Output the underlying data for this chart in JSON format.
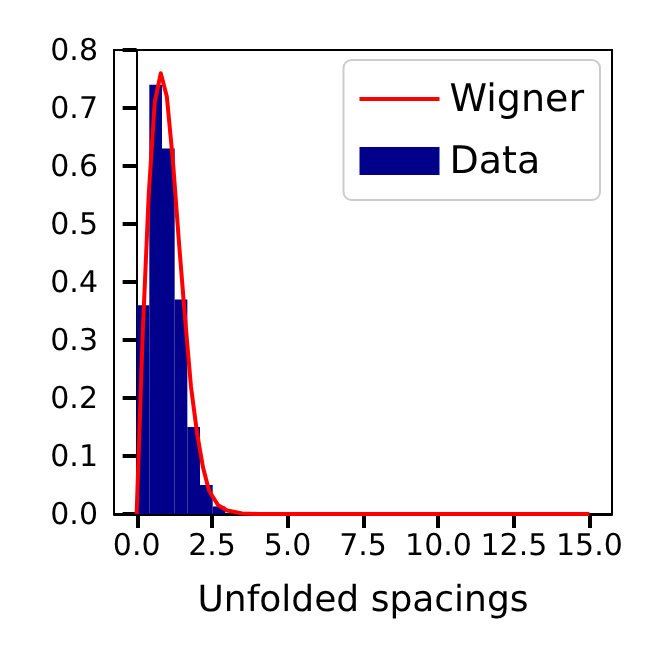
{
  "chart_data": {
    "type": "histogram",
    "xlabel": "Unfolded spacings",
    "xlim": [
      -0.75,
      15.75
    ],
    "xticks": [
      {
        "value": 0,
        "label": "0.0"
      },
      {
        "value": 2.5,
        "label": "2.5"
      },
      {
        "value": 5,
        "label": "5.0"
      },
      {
        "value": 7.5,
        "label": "7.5"
      },
      {
        "value": 10,
        "label": "10.0"
      },
      {
        "value": 12.5,
        "label": "12.5"
      },
      {
        "value": 15,
        "label": "15.0"
      }
    ],
    "ylim": [
      0,
      0.8
    ],
    "yticks": [
      {
        "value": 0,
        "label": "0.0"
      },
      {
        "value": 0.1,
        "label": "0.1"
      },
      {
        "value": 0.2,
        "label": "0.2"
      },
      {
        "value": 0.3,
        "label": "0.3"
      },
      {
        "value": 0.4,
        "label": "0.4"
      },
      {
        "value": 0.5,
        "label": "0.5"
      },
      {
        "value": 0.6,
        "label": "0.6"
      },
      {
        "value": 0.7,
        "label": "0.7"
      },
      {
        "value": 0.8,
        "label": "0.8"
      }
    ],
    "legend": "top right",
    "series": [
      {
        "name": "Wigner",
        "type": "line",
        "color": "#ff0000",
        "x": [
          0,
          0.2,
          0.4,
          0.6,
          0.8,
          1.0,
          1.2,
          1.4,
          1.6,
          1.8,
          2.0,
          2.2,
          2.4,
          2.7,
          3.0,
          3.5,
          4,
          6,
          10,
          15
        ],
        "values": [
          0,
          0.31,
          0.55,
          0.71,
          0.76,
          0.72,
          0.61,
          0.47,
          0.34,
          0.22,
          0.14,
          0.08,
          0.04,
          0.015,
          0.006,
          0.001,
          0,
          0,
          0,
          0
        ]
      },
      {
        "name": "Data",
        "color": "#00008b",
        "bins": [
          0,
          0.42,
          0.84,
          1.26,
          1.68,
          2.1,
          2.52,
          2.94
        ],
        "values": [
          0.36,
          0.74,
          0.63,
          0.37,
          0.15,
          0.05,
          0.013
        ]
      }
    ]
  }
}
